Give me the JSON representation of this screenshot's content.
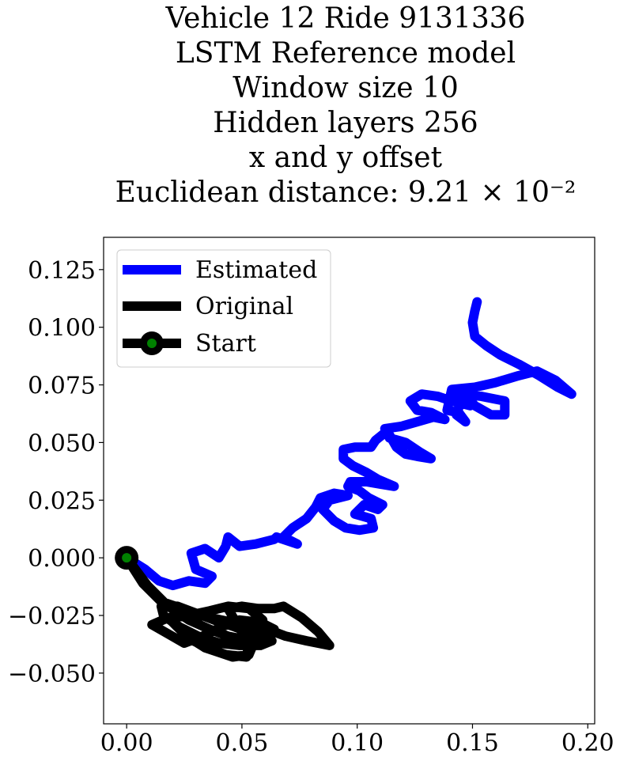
{
  "chart_data": {
    "type": "line",
    "title_lines": [
      "Vehicle 12 Ride 9131336",
      "LSTM Reference model",
      "Window size 10",
      "Hidden layers 256",
      "x and y offset",
      "Euclidean distance: 9.21 × 10⁻²"
    ],
    "xlabel": "",
    "ylabel": "",
    "xlim": [
      -0.01,
      0.203
    ],
    "ylim": [
      -0.072,
      0.139
    ],
    "xticks": [
      "0.00",
      "0.05",
      "0.10",
      "0.15",
      "0.20"
    ],
    "yticks": [
      "−0.050",
      "−0.025",
      "0.000",
      "0.025",
      "0.050",
      "0.075",
      "0.100",
      "0.125"
    ],
    "xtick_values": [
      0.0,
      0.05,
      0.1,
      0.15,
      0.2
    ],
    "ytick_values": [
      -0.05,
      -0.025,
      0.0,
      0.025,
      0.05,
      0.075,
      0.1,
      0.125
    ],
    "grid": false,
    "legend_position": "top-left",
    "series": [
      {
        "name": "Estimated",
        "color": "#0000ff",
        "points": [
          [
            0.0,
            0.0
          ],
          [
            0.008,
            -0.005
          ],
          [
            0.014,
            -0.01
          ],
          [
            0.02,
            -0.012
          ],
          [
            0.027,
            -0.01
          ],
          [
            0.034,
            -0.011
          ],
          [
            0.037,
            -0.008
          ],
          [
            0.03,
            -0.005
          ],
          [
            0.028,
            0.002
          ],
          [
            0.034,
            0.004
          ],
          [
            0.04,
            0.0
          ],
          [
            0.043,
            0.005
          ],
          [
            0.044,
            0.009
          ],
          [
            0.049,
            0.005
          ],
          [
            0.056,
            0.006
          ],
          [
            0.064,
            0.008
          ],
          [
            0.065,
            0.009
          ],
          [
            0.074,
            0.006
          ],
          [
            0.068,
            0.009
          ],
          [
            0.072,
            0.013
          ],
          [
            0.078,
            0.017
          ],
          [
            0.082,
            0.022
          ],
          [
            0.084,
            0.026
          ],
          [
            0.09,
            0.028
          ],
          [
            0.096,
            0.027
          ],
          [
            0.088,
            0.025
          ],
          [
            0.085,
            0.021
          ],
          [
            0.09,
            0.016
          ],
          [
            0.095,
            0.013
          ],
          [
            0.101,
            0.012
          ],
          [
            0.107,
            0.013
          ],
          [
            0.106,
            0.017
          ],
          [
            0.099,
            0.019
          ],
          [
            0.103,
            0.023
          ],
          [
            0.109,
            0.021
          ],
          [
            0.111,
            0.023
          ],
          [
            0.105,
            0.026
          ],
          [
            0.101,
            0.029
          ],
          [
            0.096,
            0.031
          ],
          [
            0.097,
            0.033
          ],
          [
            0.104,
            0.033
          ],
          [
            0.11,
            0.032
          ],
          [
            0.116,
            0.031
          ],
          [
            0.109,
            0.034
          ],
          [
            0.104,
            0.037
          ],
          [
            0.098,
            0.04
          ],
          [
            0.094,
            0.043
          ],
          [
            0.094,
            0.047
          ],
          [
            0.099,
            0.048
          ],
          [
            0.106,
            0.048
          ],
          [
            0.108,
            0.051
          ],
          [
            0.113,
            0.055
          ],
          [
            0.117,
            0.048
          ],
          [
            0.121,
            0.045
          ],
          [
            0.126,
            0.044
          ],
          [
            0.132,
            0.043
          ],
          [
            0.127,
            0.046
          ],
          [
            0.121,
            0.05
          ],
          [
            0.114,
            0.052
          ],
          [
            0.112,
            0.056
          ],
          [
            0.119,
            0.057
          ],
          [
            0.126,
            0.059
          ],
          [
            0.133,
            0.061
          ],
          [
            0.138,
            0.06
          ],
          [
            0.132,
            0.063
          ],
          [
            0.126,
            0.064
          ],
          [
            0.123,
            0.068
          ],
          [
            0.128,
            0.071
          ],
          [
            0.135,
            0.07
          ],
          [
            0.141,
            0.068
          ],
          [
            0.149,
            0.066
          ],
          [
            0.141,
            0.069
          ],
          [
            0.146,
            0.071
          ],
          [
            0.154,
            0.07
          ],
          [
            0.164,
            0.068
          ],
          [
            0.164,
            0.062
          ],
          [
            0.158,
            0.062
          ],
          [
            0.151,
            0.066
          ],
          [
            0.146,
            0.071
          ],
          [
            0.143,
            0.062
          ],
          [
            0.147,
            0.059
          ],
          [
            0.144,
            0.063
          ],
          [
            0.139,
            0.064
          ],
          [
            0.141,
            0.073
          ],
          [
            0.151,
            0.074
          ],
          [
            0.16,
            0.076
          ],
          [
            0.17,
            0.079
          ],
          [
            0.178,
            0.081
          ],
          [
            0.186,
            0.077
          ],
          [
            0.193,
            0.071
          ],
          [
            0.187,
            0.074
          ],
          [
            0.179,
            0.079
          ],
          [
            0.17,
            0.084
          ],
          [
            0.162,
            0.088
          ],
          [
            0.156,
            0.092
          ],
          [
            0.151,
            0.096
          ],
          [
            0.15,
            0.102
          ],
          [
            0.151,
            0.107
          ],
          [
            0.152,
            0.111
          ]
        ]
      },
      {
        "name": "Original",
        "color": "#000000",
        "points": [
          [
            0.0,
            0.0
          ],
          [
            0.009,
            -0.012
          ],
          [
            0.018,
            -0.021
          ],
          [
            0.027,
            -0.027
          ],
          [
            0.036,
            -0.031
          ],
          [
            0.044,
            -0.034
          ],
          [
            0.054,
            -0.036
          ],
          [
            0.063,
            -0.036
          ],
          [
            0.058,
            -0.038
          ],
          [
            0.049,
            -0.038
          ],
          [
            0.04,
            -0.037
          ],
          [
            0.031,
            -0.034
          ],
          [
            0.023,
            -0.03
          ],
          [
            0.016,
            -0.025
          ],
          [
            0.015,
            -0.021
          ],
          [
            0.022,
            -0.021
          ],
          [
            0.03,
            -0.024
          ],
          [
            0.038,
            -0.027
          ],
          [
            0.047,
            -0.03
          ],
          [
            0.055,
            -0.033
          ],
          [
            0.062,
            -0.035
          ],
          [
            0.064,
            -0.031
          ],
          [
            0.058,
            -0.028
          ],
          [
            0.049,
            -0.027
          ],
          [
            0.041,
            -0.03
          ],
          [
            0.033,
            -0.034
          ],
          [
            0.025,
            -0.037
          ],
          [
            0.018,
            -0.033
          ],
          [
            0.011,
            -0.029
          ],
          [
            0.018,
            -0.026
          ],
          [
            0.027,
            -0.025
          ],
          [
            0.036,
            -0.023
          ],
          [
            0.044,
            -0.021
          ],
          [
            0.053,
            -0.022
          ],
          [
            0.059,
            -0.027
          ],
          [
            0.056,
            -0.035
          ],
          [
            0.053,
            -0.042
          ],
          [
            0.046,
            -0.043
          ],
          [
            0.037,
            -0.04
          ],
          [
            0.029,
            -0.036
          ],
          [
            0.022,
            -0.03
          ],
          [
            0.019,
            -0.027
          ],
          [
            0.026,
            -0.034
          ],
          [
            0.034,
            -0.039
          ],
          [
            0.043,
            -0.042
          ],
          [
            0.052,
            -0.043
          ],
          [
            0.053,
            -0.037
          ],
          [
            0.048,
            -0.029
          ],
          [
            0.044,
            -0.022
          ],
          [
            0.05,
            -0.021
          ],
          [
            0.057,
            -0.022
          ],
          [
            0.064,
            -0.022
          ],
          [
            0.068,
            -0.021
          ],
          [
            0.076,
            -0.026
          ],
          [
            0.083,
            -0.032
          ],
          [
            0.088,
            -0.038
          ],
          [
            0.078,
            -0.036
          ],
          [
            0.069,
            -0.034
          ],
          [
            0.061,
            -0.031
          ],
          [
            0.051,
            -0.029
          ],
          [
            0.041,
            -0.027
          ],
          [
            0.032,
            -0.025
          ],
          [
            0.024,
            -0.022
          ],
          [
            0.015,
            -0.019
          ],
          [
            0.007,
            -0.011
          ],
          [
            0.0,
            0.0
          ]
        ]
      }
    ],
    "start": {
      "name": "Start",
      "x": 0.0,
      "y": 0.0,
      "marker_color": "#008000"
    }
  }
}
